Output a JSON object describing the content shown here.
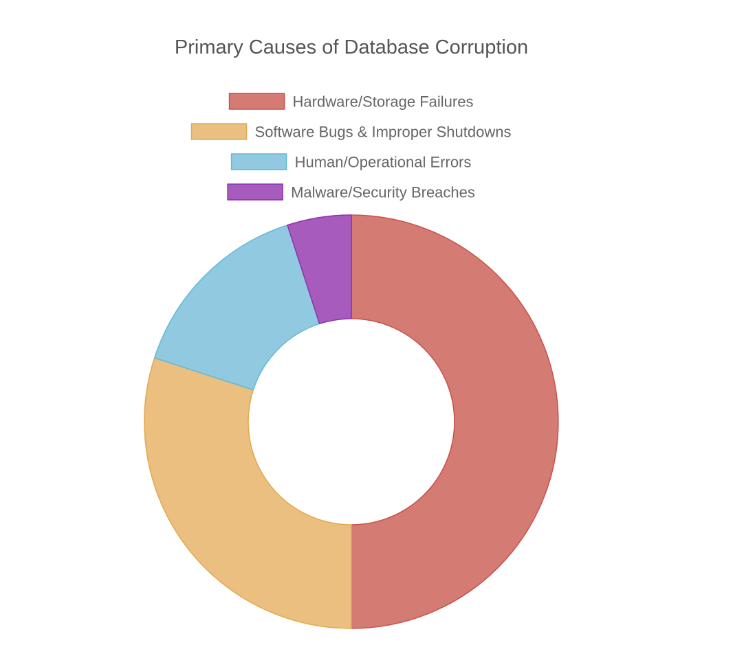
{
  "chart_data": {
    "type": "pie",
    "variant": "doughnut",
    "title": "Primary Causes of Database Corruption",
    "categories": [
      "Hardware/Storage Failures",
      "Software Bugs & Improper Shutdowns",
      "Human/Operational Errors",
      "Malware/Security Breaches"
    ],
    "values": [
      50,
      30,
      15,
      5
    ],
    "colors": [
      "#D47B73",
      "#EBBF7F",
      "#91CAE0",
      "#A65BBD"
    ],
    "border_colors": [
      "#C8514A",
      "#E3A84E",
      "#62B8D6",
      "#8E31AC"
    ],
    "legend_position": "top"
  }
}
